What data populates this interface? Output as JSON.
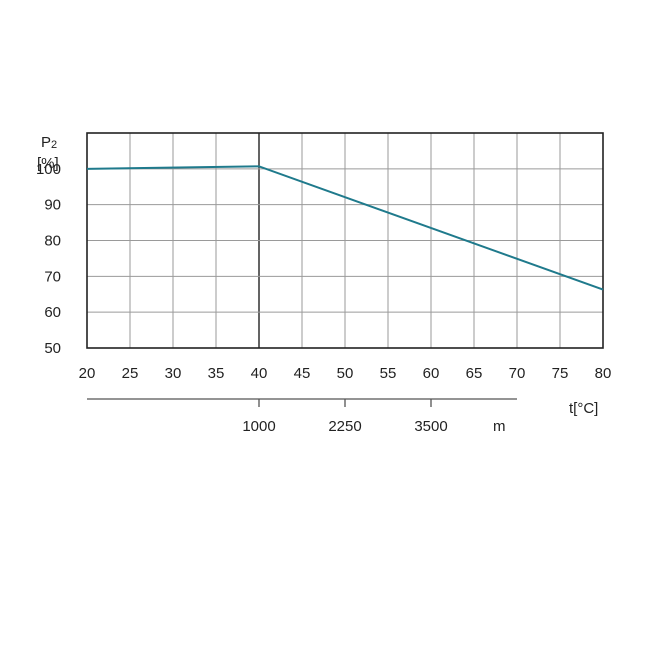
{
  "chart_data": {
    "type": "line",
    "ylabel_symbol": "P",
    "ylabel_subscript": "2",
    "ylabel_unit": "[%]",
    "xlabel": "t[°C]",
    "xlim": [
      20,
      80
    ],
    "ylim": [
      50,
      110
    ],
    "x_ticks": [
      20,
      25,
      30,
      35,
      40,
      45,
      50,
      55,
      60,
      65,
      70,
      75,
      80
    ],
    "y_ticks": [
      50,
      60,
      70,
      80,
      90,
      100
    ],
    "grid": true,
    "series": [
      {
        "x": [
          20,
          40,
          80
        ],
        "y": [
          100,
          100.7,
          66.3
        ]
      }
    ],
    "altitude_axis": {
      "range": [
        20,
        70
      ],
      "ticks": [
        {
          "at": 40,
          "label": "1000"
        },
        {
          "at": 50,
          "label": "2250"
        },
        {
          "at": 60,
          "label": "3500"
        }
      ],
      "unit": "m"
    }
  },
  "colors": {
    "line": "#1f7a8c",
    "grid": "#9a9a9a",
    "frame": "#222222",
    "text": "#222222"
  }
}
